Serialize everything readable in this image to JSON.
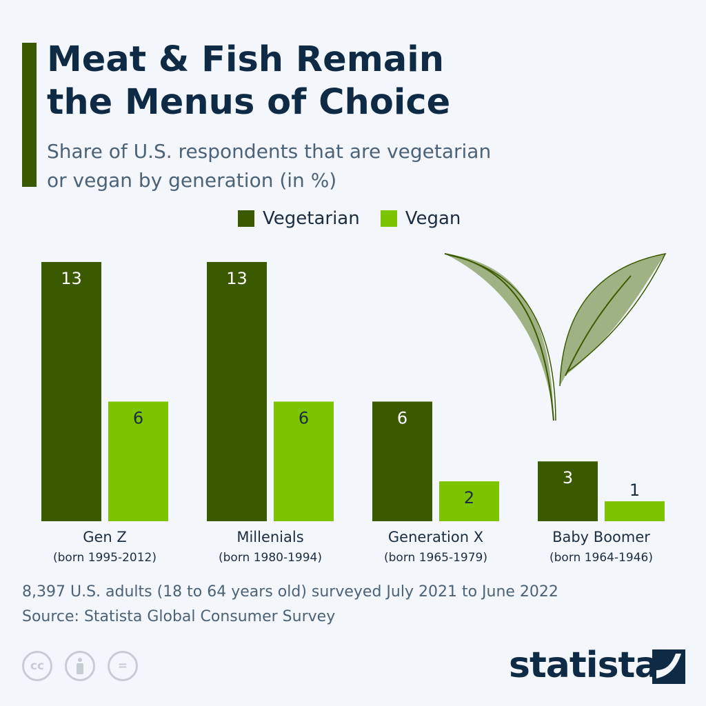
{
  "title_line1": "Meat & Fish Remain",
  "title_line2": "the Menus of Choice",
  "subtitle_line1": "Share of U.S. respondents that are vegetarian",
  "subtitle_line2": "or vegan by generation (in %)",
  "colors": {
    "vegetarian": "#3b5a00",
    "vegan": "#7dc400",
    "title": "#0f2a45",
    "background": "#f3f6fa"
  },
  "chart_data": {
    "type": "bar",
    "title": "Meat & Fish Remain the Menus of Choice",
    "categories": [
      "Gen Z",
      "Millenials",
      "Generation X",
      "Baby Boomer"
    ],
    "category_sublabels": [
      "(born 1995-2012)",
      "(born 1980-1994)",
      "(born 1965-1979)",
      "(born 1964-1946)"
    ],
    "series": [
      {
        "name": "Vegetarian",
        "values": [
          13,
          13,
          6,
          3
        ]
      },
      {
        "name": "Vegan",
        "values": [
          6,
          6,
          2,
          1
        ]
      }
    ],
    "ylim": [
      0,
      13
    ],
    "grid": false,
    "legend_position": "top",
    "data_labels": true
  },
  "footnote": "8,397 U.S. adults (18 to 64 years old) surveyed July 2021 to June 2022",
  "source": "Source: Statista Global Consumer Survey",
  "license_icons": [
    "cc-icon",
    "attribution-icon",
    "no-derivatives-icon"
  ],
  "license_cc_text": "cc",
  "license_nd_text": "=",
  "logo_text": "statista"
}
